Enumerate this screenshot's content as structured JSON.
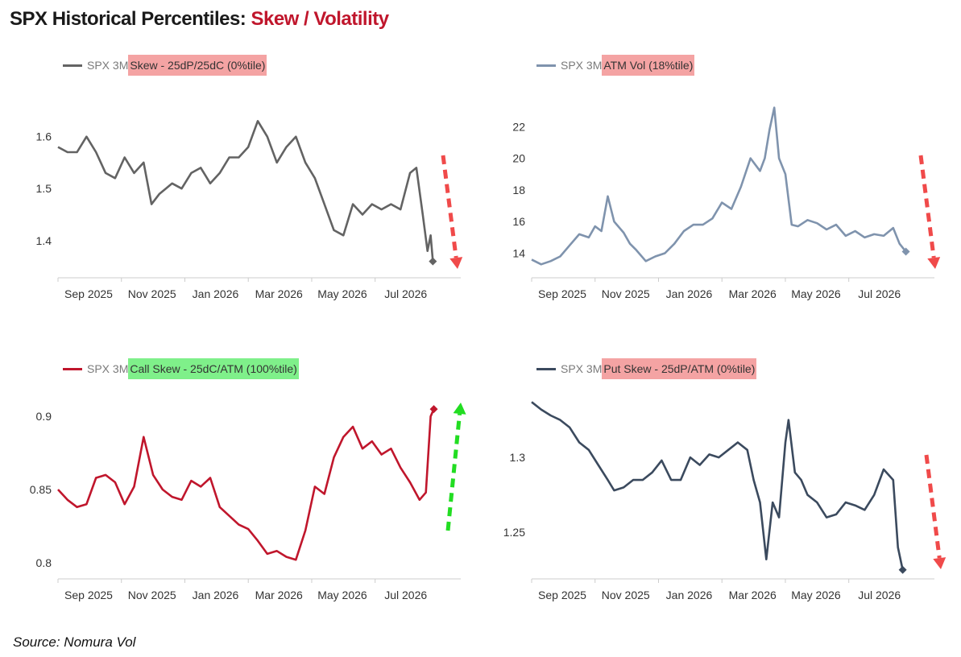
{
  "header": {
    "title_main": "SPX Historical Percentiles:",
    "title_accent": "Skew / Volatility"
  },
  "source": "Source: Nomura Vol",
  "colors": {
    "red_highlight": "#f4a3a3",
    "green_highlight": "#7ff08a",
    "arrow_down": "#f04a4a",
    "arrow_up": "#22dd22",
    "axis": "#cccccc"
  },
  "chart_data": [
    {
      "id": "skew",
      "type": "line",
      "legend": {
        "prefix": "SPX 3M",
        "label": "Skew - 25dP/25dC (0%tile)",
        "highlight": "red"
      },
      "color": "#636363",
      "yticks": [
        1.4,
        1.5,
        1.6
      ],
      "ylim": [
        1.33,
        1.68
      ],
      "xlabels": [
        "Sep 2025",
        "Nov 2025",
        "Jan 2026",
        "Mar 2026",
        "May 2026",
        "Jul 2026"
      ],
      "xlim": [
        0,
        12.7
      ],
      "arrow": "down",
      "x": [
        0.0,
        0.3,
        0.6,
        0.9,
        1.2,
        1.5,
        1.8,
        2.1,
        2.4,
        2.7,
        2.95,
        3.2,
        3.4,
        3.6,
        3.9,
        4.2,
        4.5,
        4.8,
        5.1,
        5.4,
        5.7,
        6.0,
        6.3,
        6.6,
        6.9,
        7.2,
        7.5,
        7.8,
        8.1,
        8.4,
        8.7,
        9.0,
        9.3,
        9.6,
        9.9,
        10.2,
        10.5,
        10.8,
        11.1,
        11.3,
        11.5,
        11.65,
        11.75,
        11.82
      ],
      "y": [
        1.58,
        1.57,
        1.57,
        1.6,
        1.57,
        1.53,
        1.52,
        1.56,
        1.53,
        1.55,
        1.47,
        1.49,
        1.5,
        1.51,
        1.5,
        1.53,
        1.54,
        1.51,
        1.53,
        1.56,
        1.56,
        1.58,
        1.63,
        1.6,
        1.55,
        1.58,
        1.6,
        1.55,
        1.52,
        1.47,
        1.42,
        1.41,
        1.47,
        1.45,
        1.47,
        1.46,
        1.47,
        1.46,
        1.53,
        1.54,
        1.45,
        1.38,
        1.41,
        1.36
      ]
    },
    {
      "id": "atm_vol",
      "type": "line",
      "legend": {
        "prefix": "SPX 3M",
        "label": "ATM Vol (18%tile)",
        "highlight": "red"
      },
      "color": "#7f93ad",
      "yticks": [
        14,
        16,
        18,
        20,
        22
      ],
      "ylim": [
        12.5,
        24
      ],
      "xlabels": [
        "Sep 2025",
        "Nov 2025",
        "Jan 2026",
        "Mar 2026",
        "May 2026",
        "Jul 2026"
      ],
      "xlim": [
        0,
        12.7
      ],
      "arrow": "down",
      "x": [
        0.0,
        0.3,
        0.6,
        0.9,
        1.2,
        1.5,
        1.8,
        2.0,
        2.2,
        2.4,
        2.6,
        2.9,
        3.1,
        3.3,
        3.6,
        3.9,
        4.2,
        4.5,
        4.8,
        5.1,
        5.4,
        5.7,
        6.0,
        6.3,
        6.6,
        6.9,
        7.2,
        7.35,
        7.5,
        7.65,
        7.8,
        8.0,
        8.2,
        8.4,
        8.7,
        9.0,
        9.3,
        9.6,
        9.9,
        10.2,
        10.5,
        10.8,
        11.1,
        11.4,
        11.6,
        11.8
      ],
      "y": [
        13.6,
        13.3,
        13.5,
        13.8,
        14.5,
        15.2,
        15.0,
        15.7,
        15.4,
        17.6,
        16.0,
        15.3,
        14.6,
        14.2,
        13.5,
        13.8,
        14.0,
        14.6,
        15.4,
        15.8,
        15.8,
        16.2,
        17.2,
        16.8,
        18.2,
        20.0,
        19.2,
        20.0,
        21.8,
        23.2,
        20.0,
        19.0,
        15.8,
        15.7,
        16.1,
        15.9,
        15.5,
        15.8,
        15.1,
        15.4,
        15.0,
        15.2,
        15.1,
        15.6,
        14.6,
        14.1
      ]
    },
    {
      "id": "call_skew",
      "type": "line",
      "legend": {
        "prefix": "SPX 3M",
        "label": "Call Skew - 25dC/ATM (100%tile)",
        "highlight": "green"
      },
      "color": "#c0162c",
      "yticks": [
        0.8,
        0.85,
        0.9
      ],
      "ylim": [
        0.79,
        0.915
      ],
      "xlabels": [
        "Sep 2025",
        "Nov 2025",
        "Jan 2026",
        "Mar 2026",
        "May 2026",
        "Jul 2026"
      ],
      "xlim": [
        0,
        12.7
      ],
      "arrow": "up",
      "x": [
        0.0,
        0.3,
        0.6,
        0.9,
        1.2,
        1.5,
        1.8,
        2.1,
        2.4,
        2.7,
        3.0,
        3.3,
        3.6,
        3.9,
        4.2,
        4.5,
        4.8,
        5.1,
        5.4,
        5.7,
        6.0,
        6.3,
        6.6,
        6.9,
        7.2,
        7.5,
        7.8,
        8.1,
        8.4,
        8.7,
        9.0,
        9.3,
        9.6,
        9.9,
        10.2,
        10.5,
        10.8,
        11.1,
        11.4,
        11.6,
        11.75,
        11.85
      ],
      "y": [
        0.85,
        0.843,
        0.838,
        0.84,
        0.858,
        0.86,
        0.855,
        0.84,
        0.852,
        0.886,
        0.86,
        0.85,
        0.845,
        0.843,
        0.856,
        0.852,
        0.858,
        0.838,
        0.832,
        0.826,
        0.823,
        0.815,
        0.806,
        0.808,
        0.804,
        0.802,
        0.822,
        0.852,
        0.847,
        0.872,
        0.886,
        0.893,
        0.878,
        0.883,
        0.874,
        0.878,
        0.865,
        0.855,
        0.843,
        0.848,
        0.9,
        0.905
      ]
    },
    {
      "id": "put_skew",
      "type": "line",
      "legend": {
        "prefix": "SPX 3M",
        "label": "Put Skew - 25dP/ATM (0%tile)",
        "highlight": "red"
      },
      "color": "#3b4a5e",
      "yticks": [
        1.25,
        1.3
      ],
      "ylim": [
        1.22,
        1.342
      ],
      "xlabels": [
        "Sep 2025",
        "Nov 2025",
        "Jan 2026",
        "Mar 2026",
        "May 2026",
        "Jul 2026"
      ],
      "xlim": [
        0,
        12.7
      ],
      "arrow": "down",
      "x": [
        0.0,
        0.3,
        0.6,
        0.9,
        1.2,
        1.5,
        1.8,
        2.1,
        2.4,
        2.6,
        2.9,
        3.2,
        3.5,
        3.8,
        4.1,
        4.4,
        4.7,
        5.0,
        5.3,
        5.6,
        5.9,
        6.2,
        6.5,
        6.8,
        7.0,
        7.2,
        7.4,
        7.6,
        7.8,
        8.0,
        8.1,
        8.3,
        8.5,
        8.7,
        9.0,
        9.3,
        9.6,
        9.9,
        10.2,
        10.5,
        10.8,
        11.1,
        11.4,
        11.55,
        11.7
      ],
      "y": [
        1.337,
        1.332,
        1.328,
        1.325,
        1.32,
        1.31,
        1.305,
        1.295,
        1.285,
        1.278,
        1.28,
        1.285,
        1.285,
        1.29,
        1.298,
        1.285,
        1.285,
        1.3,
        1.295,
        1.302,
        1.3,
        1.305,
        1.31,
        1.305,
        1.285,
        1.27,
        1.232,
        1.27,
        1.26,
        1.31,
        1.325,
        1.29,
        1.285,
        1.275,
        1.27,
        1.26,
        1.262,
        1.27,
        1.268,
        1.265,
        1.275,
        1.292,
        1.285,
        1.24,
        1.225
      ]
    }
  ]
}
